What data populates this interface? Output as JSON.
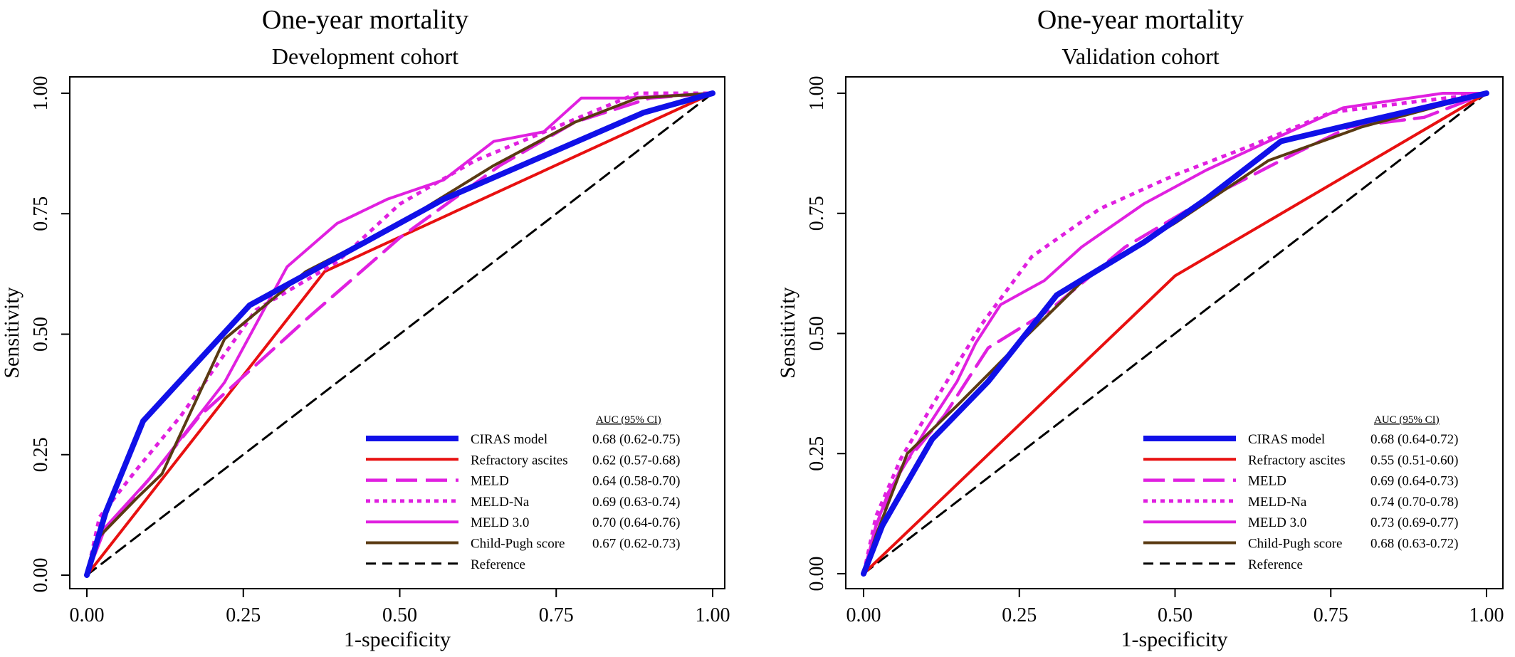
{
  "chart_data": [
    {
      "type": "line",
      "title": "One-year mortality",
      "subtitle": "Development cohort",
      "xlabel": "1-specificity",
      "ylabel": "Sensitivity",
      "xlim": [
        0,
        1
      ],
      "ylim": [
        0,
        1
      ],
      "xticks": [
        "0.00",
        "0.25",
        "0.50",
        "0.75",
        "1.00"
      ],
      "yticks": [
        "0.00",
        "0.25",
        "0.50",
        "0.75",
        "1.00"
      ],
      "grid": false,
      "legend_position": "bottom-right",
      "auc_header": "AUC  (95% CI)",
      "series": [
        {
          "name": "CIRAS model",
          "auc": "0.68 (0.62-0.75)",
          "color": "#1010e8",
          "style": "solid-thick",
          "x": [
            0,
            0.03,
            0.09,
            0.26,
            0.57,
            0.89,
            1
          ],
          "y": [
            0,
            0.13,
            0.32,
            0.56,
            0.78,
            0.96,
            1
          ]
        },
        {
          "name": "Refractory ascites",
          "auc": "0.62 (0.57-0.68)",
          "color": "#e81010",
          "style": "solid",
          "x": [
            0,
            0.38,
            1
          ],
          "y": [
            0,
            0.63,
            1
          ]
        },
        {
          "name": "MELD",
          "auc": "0.64 (0.58-0.70)",
          "color": "#e020e0",
          "style": "dashed",
          "x": [
            0,
            0.02,
            0.1,
            0.18,
            0.35,
            0.5,
            0.66,
            0.78,
            0.9,
            1
          ],
          "y": [
            0,
            0.08,
            0.2,
            0.33,
            0.53,
            0.7,
            0.85,
            0.94,
            0.99,
            1
          ]
        },
        {
          "name": "MELD-Na",
          "auc": "0.69 (0.63-0.74)",
          "color": "#e020e0",
          "style": "dotted",
          "x": [
            0,
            0.02,
            0.08,
            0.15,
            0.27,
            0.4,
            0.5,
            0.62,
            0.75,
            0.88,
            1
          ],
          "y": [
            0,
            0.12,
            0.22,
            0.33,
            0.55,
            0.65,
            0.77,
            0.86,
            0.93,
            1,
            1
          ]
        },
        {
          "name": "MELD 3.0",
          "auc": "0.70 (0.64-0.76)",
          "color": "#e020e0",
          "style": "solid",
          "x": [
            0,
            0.03,
            0.1,
            0.22,
            0.32,
            0.4,
            0.48,
            0.57,
            0.65,
            0.73,
            0.79,
            0.86,
            1
          ],
          "y": [
            0,
            0.1,
            0.2,
            0.4,
            0.64,
            0.73,
            0.78,
            0.82,
            0.9,
            0.92,
            0.99,
            0.99,
            1
          ]
        },
        {
          "name": "Child-Pugh score",
          "auc": "0.67 (0.62-0.73)",
          "color": "#5a3a12",
          "style": "solid",
          "x": [
            0,
            0.02,
            0.08,
            0.12,
            0.22,
            0.35,
            0.5,
            0.65,
            0.78,
            0.88,
            1
          ],
          "y": [
            0,
            0.08,
            0.16,
            0.21,
            0.49,
            0.63,
            0.73,
            0.85,
            0.94,
            0.99,
            1
          ]
        },
        {
          "name": "Reference",
          "auc": "",
          "color": "#000000",
          "style": "reference",
          "x": [
            0,
            1
          ],
          "y": [
            0,
            1
          ]
        }
      ]
    },
    {
      "type": "line",
      "title": "One-year mortality",
      "subtitle": "Validation cohort",
      "xlabel": "1-specificity",
      "ylabel": "Sensitivity",
      "xlim": [
        0,
        1
      ],
      "ylim": [
        0,
        1
      ],
      "xticks": [
        "0.00",
        "0.25",
        "0.50",
        "0.75",
        "1.00"
      ],
      "yticks": [
        "0.00",
        "0.25",
        "0.50",
        "0.75",
        "1.00"
      ],
      "grid": false,
      "legend_position": "bottom-right",
      "auc_header": "AUC  (95% CI)",
      "series": [
        {
          "name": "CIRAS model",
          "auc": "0.68 (0.64-0.72)",
          "color": "#1010e8",
          "style": "solid-thick",
          "x": [
            0,
            0.03,
            0.11,
            0.2,
            0.31,
            0.45,
            0.55,
            0.67,
            0.8,
            1
          ],
          "y": [
            0,
            0.1,
            0.28,
            0.4,
            0.58,
            0.69,
            0.78,
            0.9,
            0.94,
            1
          ]
        },
        {
          "name": "Refractory ascites",
          "auc": "0.55 (0.51-0.60)",
          "color": "#e81010",
          "style": "solid",
          "x": [
            0,
            0.5,
            1
          ],
          "y": [
            0,
            0.62,
            1
          ]
        },
        {
          "name": "MELD",
          "auc": "0.69 (0.64-0.73)",
          "color": "#e020e0",
          "style": "dashed",
          "x": [
            0,
            0.02,
            0.06,
            0.13,
            0.2,
            0.3,
            0.42,
            0.55,
            0.67,
            0.78,
            0.9,
            1
          ],
          "y": [
            0,
            0.1,
            0.22,
            0.33,
            0.47,
            0.55,
            0.68,
            0.78,
            0.86,
            0.93,
            0.95,
            1
          ]
        },
        {
          "name": "MELD-Na",
          "auc": "0.74 (0.70-0.78)",
          "color": "#e020e0",
          "style": "dotted",
          "x": [
            0,
            0.02,
            0.06,
            0.11,
            0.19,
            0.27,
            0.38,
            0.5,
            0.62,
            0.75,
            0.87,
            1
          ],
          "y": [
            0,
            0.12,
            0.24,
            0.35,
            0.52,
            0.66,
            0.76,
            0.83,
            0.89,
            0.96,
            0.98,
            1
          ]
        },
        {
          "name": "MELD 3.0",
          "auc": "0.73 (0.69-0.77)",
          "color": "#e020e0",
          "style": "solid",
          "x": [
            0,
            0.02,
            0.04,
            0.1,
            0.15,
            0.18,
            0.22,
            0.29,
            0.35,
            0.45,
            0.55,
            0.65,
            0.77,
            0.93,
            1
          ],
          "y": [
            0,
            0.1,
            0.17,
            0.3,
            0.4,
            0.48,
            0.56,
            0.61,
            0.68,
            0.77,
            0.84,
            0.9,
            0.97,
            1,
            1
          ]
        },
        {
          "name": "Child-Pugh score",
          "auc": "0.68 (0.63-0.72)",
          "color": "#5a3a12",
          "style": "solid",
          "x": [
            0,
            0.02,
            0.07,
            0.15,
            0.25,
            0.36,
            0.5,
            0.65,
            0.8,
            1
          ],
          "y": [
            0,
            0.08,
            0.25,
            0.35,
            0.48,
            0.62,
            0.73,
            0.86,
            0.93,
            1
          ]
        },
        {
          "name": "Reference",
          "auc": "",
          "color": "#000000",
          "style": "reference",
          "x": [
            0,
            1
          ],
          "y": [
            0,
            1
          ]
        }
      ]
    }
  ]
}
